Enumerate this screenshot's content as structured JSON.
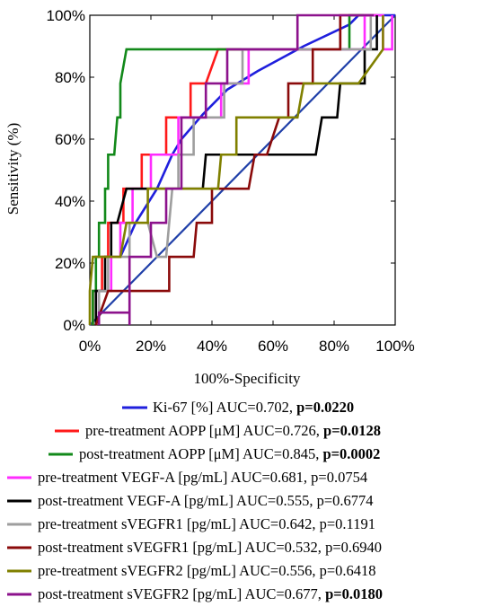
{
  "chart_data": {
    "type": "line",
    "xlabel": "100%-Specificity",
    "ylabel": "Sensitivity (%)",
    "xlim": [
      0,
      100
    ],
    "ylim": [
      0,
      100
    ],
    "x_ticks": [
      "0%",
      "20%",
      "40%",
      "60%",
      "80%",
      "100%"
    ],
    "y_ticks": [
      "0%",
      "20%",
      "40%",
      "60%",
      "80%",
      "100%"
    ],
    "grid": false,
    "legend_position": "bottom",
    "reference_line": {
      "color": "#1f3fa8",
      "points": [
        [
          0,
          0
        ],
        [
          100,
          100
        ]
      ]
    },
    "series": [
      {
        "name": "Ki-67 [%]",
        "auc_text": "AUC=0.702, ",
        "p_text": "p=0.0220",
        "p_bold": true,
        "color": "#1f1fdd",
        "points": [
          [
            10,
            22
          ],
          [
            15,
            33
          ],
          [
            22,
            44
          ],
          [
            27,
            55
          ],
          [
            30,
            60
          ],
          [
            37,
            68
          ],
          [
            45,
            76
          ],
          [
            55,
            82
          ],
          [
            70,
            90
          ],
          [
            85,
            97
          ],
          [
            88,
            100
          ],
          [
            100,
            100
          ]
        ]
      },
      {
        "name": "pre-treatment AOPP [μM]",
        "auc_text": "AUC=0.726, ",
        "p_text": "p=0.0128",
        "p_bold": true,
        "color": "#ff1a1a",
        "points": [
          [
            1,
            0
          ],
          [
            1,
            11
          ],
          [
            4,
            11
          ],
          [
            4,
            22
          ],
          [
            6,
            22
          ],
          [
            6,
            33
          ],
          [
            11,
            33
          ],
          [
            11,
            44
          ],
          [
            17,
            44
          ],
          [
            17,
            55
          ],
          [
            25,
            55
          ],
          [
            25,
            67
          ],
          [
            33,
            67
          ],
          [
            33,
            78
          ],
          [
            38,
            78
          ],
          [
            42,
            89
          ],
          [
            82,
            89
          ],
          [
            82,
            100
          ],
          [
            94,
            100
          ],
          [
            94,
            100
          ]
        ]
      },
      {
        "name": "post-treatment AOPP [μM]",
        "auc_text": "AUC=0.845, ",
        "p_text": "p=0.0002",
        "p_bold": true,
        "color": "#12891a",
        "points": [
          [
            1,
            0
          ],
          [
            1,
            11
          ],
          [
            2,
            11
          ],
          [
            2,
            22
          ],
          [
            3,
            22
          ],
          [
            3,
            33
          ],
          [
            5,
            33
          ],
          [
            5,
            44
          ],
          [
            6,
            44
          ],
          [
            6,
            55
          ],
          [
            8,
            55
          ],
          [
            9,
            67
          ],
          [
            10,
            67
          ],
          [
            10,
            78
          ],
          [
            12,
            89
          ],
          [
            85,
            89
          ],
          [
            85,
            100
          ],
          [
            93,
            100
          ]
        ]
      },
      {
        "name": "pre-treatment VEGF-A [pg/mL]",
        "auc_text": "AUC=0.681, ",
        "p_text": "p=0.0754",
        "p_bold": false,
        "color": "#ff2cff",
        "points": [
          [
            3,
            0
          ],
          [
            3,
            11
          ],
          [
            7,
            11
          ],
          [
            7,
            22
          ],
          [
            10,
            22
          ],
          [
            10,
            33
          ],
          [
            14,
            33
          ],
          [
            14,
            44
          ],
          [
            20,
            44
          ],
          [
            20,
            55
          ],
          [
            29,
            55
          ],
          [
            29,
            67
          ],
          [
            43,
            67
          ],
          [
            43,
            78
          ],
          [
            52,
            78
          ],
          [
            52,
            89
          ],
          [
            90,
            89
          ],
          [
            90,
            100
          ],
          [
            96,
            100
          ],
          [
            96,
            89
          ],
          [
            99,
            89
          ],
          [
            99,
            100
          ]
        ]
      },
      {
        "name": "post-treatment VEGF-A [pg/mL]",
        "auc_text": "AUC=0.555, ",
        "p_text": "p=0.6774",
        "p_bold": false,
        "color": "#000000",
        "points": [
          [
            2,
            0
          ],
          [
            2,
            11
          ],
          [
            5,
            11
          ],
          [
            5,
            22
          ],
          [
            7,
            22
          ],
          [
            7,
            33
          ],
          [
            9,
            33
          ],
          [
            12,
            44
          ],
          [
            22,
            44
          ],
          [
            37,
            44
          ],
          [
            38,
            55
          ],
          [
            74,
            55
          ],
          [
            76,
            67
          ],
          [
            81,
            67
          ],
          [
            82,
            78
          ],
          [
            90,
            78
          ],
          [
            90,
            89
          ],
          [
            94,
            89
          ],
          [
            94,
            100
          ]
        ]
      },
      {
        "name": "pre-treatment sVEGFR1 [pg/mL]",
        "auc_text": "AUC=0.642, ",
        "p_text": "p=0.1191",
        "p_bold": false,
        "color": "#9e9e9e",
        "points": [
          [
            3,
            0
          ],
          [
            3,
            11
          ],
          [
            6,
            11
          ],
          [
            6,
            22
          ],
          [
            13,
            22
          ],
          [
            13,
            33
          ],
          [
            19,
            33
          ],
          [
            22,
            22
          ],
          [
            25,
            22
          ],
          [
            27,
            44
          ],
          [
            29,
            44
          ],
          [
            29,
            55
          ],
          [
            34,
            55
          ],
          [
            34,
            67
          ],
          [
            44,
            67
          ],
          [
            44,
            78
          ],
          [
            50,
            78
          ],
          [
            50,
            89
          ],
          [
            92,
            89
          ],
          [
            92,
            100
          ]
        ]
      },
      {
        "name": "post-treatment sVEGFR1 [pg/mL]",
        "auc_text": "AUC=0.532, ",
        "p_text": "p=0.6940",
        "p_bold": false,
        "color": "#8a0a0a",
        "points": [
          [
            2,
            0
          ],
          [
            6,
            11
          ],
          [
            26,
            11
          ],
          [
            26,
            22
          ],
          [
            34,
            22
          ],
          [
            35,
            33
          ],
          [
            40,
            33
          ],
          [
            40,
            44
          ],
          [
            52,
            44
          ],
          [
            54,
            55
          ],
          [
            58,
            55
          ],
          [
            62,
            67
          ],
          [
            65,
            67
          ],
          [
            65,
            78
          ],
          [
            73,
            78
          ],
          [
            73,
            89
          ],
          [
            82,
            89
          ],
          [
            82,
            100
          ]
        ]
      },
      {
        "name": "pre-treatment sVEGFR2 [pg/mL]",
        "auc_text": "AUC=0.556, ",
        "p_text": "p=0.6418",
        "p_bold": false,
        "color": "#808000",
        "points": [
          [
            0,
            0
          ],
          [
            0,
            11
          ],
          [
            1,
            22
          ],
          [
            9,
            22
          ],
          [
            10,
            22
          ],
          [
            12,
            33
          ],
          [
            19,
            33
          ],
          [
            19,
            44
          ],
          [
            29,
            44
          ],
          [
            42,
            44
          ],
          [
            43,
            55
          ],
          [
            48,
            55
          ],
          [
            48,
            67
          ],
          [
            68,
            67
          ],
          [
            70,
            78
          ],
          [
            88,
            78
          ],
          [
            96,
            89
          ],
          [
            96,
            100
          ]
        ]
      },
      {
        "name": "post-treatment sVEGFR2 [pg/mL]",
        "auc_text": "AUC=0.677, ",
        "p_text": "p=0.0180",
        "p_bold": true,
        "color": "#8c128c",
        "points": [
          [
            3,
            0
          ],
          [
            3,
            4
          ],
          [
            13,
            4
          ],
          [
            13,
            0
          ],
          [
            13,
            22
          ],
          [
            20,
            22
          ],
          [
            20,
            33
          ],
          [
            25,
            33
          ],
          [
            25,
            44
          ],
          [
            30,
            44
          ],
          [
            30,
            67
          ],
          [
            38,
            67
          ],
          [
            38,
            78
          ],
          [
            45,
            78
          ],
          [
            45,
            89
          ],
          [
            58,
            89
          ],
          [
            68,
            89
          ],
          [
            68,
            100
          ],
          [
            93,
            100
          ]
        ]
      }
    ]
  },
  "colors": {
    "axis": "#000000",
    "background": "#ffffff"
  }
}
